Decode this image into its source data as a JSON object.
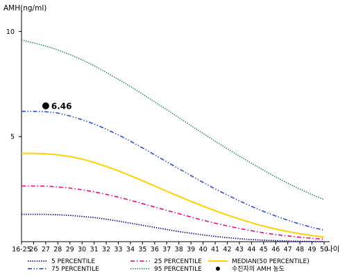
{
  "chart_data": {
    "type": "line",
    "ylabel": "AMH(ng/ml)",
    "xlabel": "나이",
    "ylim": [
      0,
      11
    ],
    "y_ticks": [
      5,
      10
    ],
    "y_tick_labels": [
      "5",
      "10"
    ],
    "x": [
      "16-25",
      "26",
      "27",
      "28",
      "29",
      "30",
      "31",
      "32",
      "33",
      "34",
      "35",
      "36",
      "37",
      "38",
      "39",
      "40",
      "41",
      "42",
      "43",
      "44",
      "45",
      "46",
      "47",
      "48",
      "49",
      "50"
    ],
    "grid": false,
    "series": [
      {
        "name": "5 PERCENTILE",
        "color": "#000080",
        "style": "dotted",
        "values": [
          1.3,
          1.3,
          1.3,
          1.28,
          1.25,
          1.2,
          1.15,
          1.07,
          0.98,
          0.88,
          0.78,
          0.68,
          0.58,
          0.48,
          0.4,
          0.32,
          0.25,
          0.19,
          0.14,
          0.1,
          0.07,
          0.05,
          0.03,
          0.02,
          0.01,
          0.01
        ]
      },
      {
        "name": "25 PERCENTILE",
        "color": "#e0168a",
        "style": "dashdot",
        "values": [
          2.65,
          2.65,
          2.64,
          2.6,
          2.55,
          2.47,
          2.37,
          2.25,
          2.12,
          1.97,
          1.81,
          1.65,
          1.49,
          1.33,
          1.17,
          1.02,
          0.88,
          0.75,
          0.63,
          0.52,
          0.42,
          0.34,
          0.27,
          0.21,
          0.16,
          0.12
        ]
      },
      {
        "name": "MEDIAN(50 PERCENTILE)",
        "color": "#ffd000",
        "style": "solid",
        "values": [
          4.2,
          4.2,
          4.18,
          4.13,
          4.05,
          3.93,
          3.77,
          3.58,
          3.37,
          3.14,
          2.9,
          2.65,
          2.4,
          2.16,
          1.92,
          1.69,
          1.47,
          1.27,
          1.08,
          0.9,
          0.74,
          0.6,
          0.48,
          0.38,
          0.29,
          0.22
        ]
      },
      {
        "name": "75 PERCENTILE",
        "color": "#3a55c8",
        "style": "dashdotdot",
        "values": [
          6.2,
          6.2,
          6.18,
          6.12,
          5.98,
          5.8,
          5.6,
          5.35,
          5.08,
          4.78,
          4.46,
          4.13,
          3.8,
          3.47,
          3.14,
          2.82,
          2.51,
          2.22,
          1.94,
          1.68,
          1.44,
          1.22,
          1.02,
          0.84,
          0.68,
          0.55
        ]
      },
      {
        "name": "95 PERCENTILE",
        "color": "#2e8b57",
        "style": "dotted",
        "values": [
          9.6,
          9.45,
          9.3,
          9.12,
          8.9,
          8.65,
          8.37,
          8.05,
          7.72,
          7.38,
          7.02,
          6.65,
          6.28,
          5.9,
          5.52,
          5.15,
          4.78,
          4.42,
          4.07,
          3.73,
          3.4,
          3.08,
          2.78,
          2.5,
          2.24,
          2.0
        ]
      }
    ],
    "patient_point": {
      "x": "27",
      "value": 6.46,
      "label": "6.46",
      "color": "#000000"
    },
    "legend": {
      "position": "bottom",
      "items": [
        {
          "label": "5 PERCENTILE",
          "color": "#000080",
          "style": "dotted"
        },
        {
          "label": "25 PERCENTILE",
          "color": "#e0168a",
          "style": "dashdot"
        },
        {
          "label": "MEDIAN(50 PERCENTILE)",
          "color": "#ffd000",
          "style": "solid"
        },
        {
          "label": "75 PERCENTILE",
          "color": "#3a55c8",
          "style": "dashdotdot"
        },
        {
          "label": "95 PERCENTILE",
          "color": "#2e8b57",
          "style": "dotted"
        },
        {
          "label": "수진자의 AMH 농도",
          "color": "#000000",
          "style": "marker"
        }
      ]
    }
  }
}
